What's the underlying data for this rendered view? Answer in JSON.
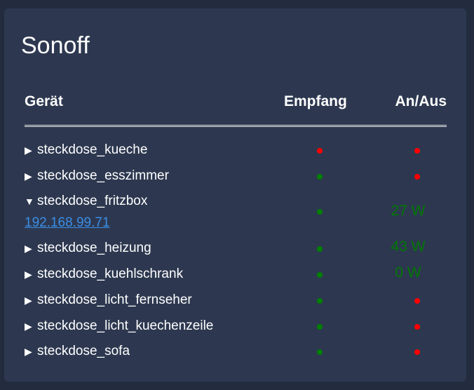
{
  "title": "Sonoff",
  "table": {
    "col_device": "Gerät",
    "col_signal": "Empfang",
    "col_power": "An/Aus"
  },
  "devices": [
    {
      "name": "steckdose_kueche",
      "expanded": false,
      "signal": "red",
      "power": "red"
    },
    {
      "name": "steckdose_esszimmer",
      "expanded": false,
      "signal": "green",
      "power": "red"
    },
    {
      "name": "steckdose_fritzbox",
      "expanded": true,
      "ip": "192.168.99.71",
      "signal": "green",
      "power_watts": "27 W"
    },
    {
      "name": "steckdose_heizung",
      "expanded": false,
      "signal": "green",
      "power_watts": "43 W"
    },
    {
      "name": "steckdose_kuehlschrank",
      "expanded": false,
      "signal": "green",
      "power_watts": "0 W"
    },
    {
      "name": "steckdose_licht_fernseher",
      "expanded": false,
      "signal": "green",
      "power": "red"
    },
    {
      "name": "steckdose_licht_kuechenzeile",
      "expanded": false,
      "signal": "green",
      "power": "red"
    },
    {
      "name": "steckdose_sofa",
      "expanded": false,
      "signal": "green",
      "power": "red"
    }
  ],
  "icons": {
    "collapsed": "▶",
    "expanded": "▼"
  },
  "colors": {
    "background": "#222c3e",
    "card": "#2d3850",
    "status_red": "#ff0000",
    "status_green": "#008000",
    "watt_text": "#007800",
    "link": "#3a8ee6"
  }
}
